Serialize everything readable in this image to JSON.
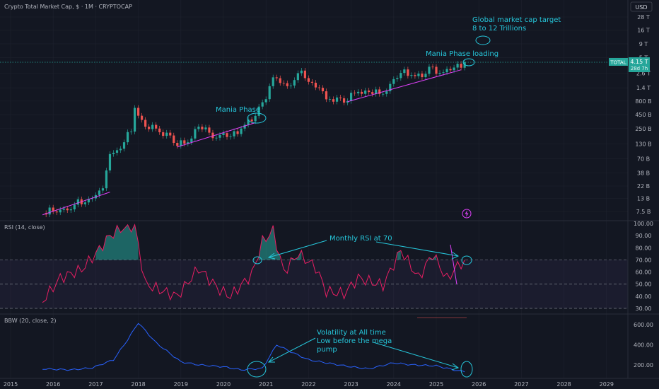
{
  "header": {
    "title": "Crypto Total Market Cap, $ · 1M · CRYPTOCAP",
    "currency_button": "USD"
  },
  "price_badge": {
    "symbol": "TOTAL",
    "value": "4.15 T",
    "countdown": "28d 7h"
  },
  "panes": {
    "rsi_title": "RSI (14, close)",
    "bbw_title": "BBW (20, close, 2)"
  },
  "annotations": {
    "mania_phase": "Mania Phase",
    "mania_loading": "Mania Phase loading",
    "target_line1": "Global market cap target",
    "target_line2": "8 to 12 Trillions",
    "rsi_note": "Monthly RSI at 70",
    "bbw_line1": "Volatility at All time",
    "bbw_line2": "Low before the mega",
    "bbw_line3": "pump"
  },
  "icons": {
    "lightning": "lightning-icon"
  },
  "colors": {
    "up": "#26a69a",
    "down": "#ef5350",
    "rsi": "#e91e63",
    "bbw": "#2962ff",
    "accent": "#26c6da",
    "trend": "#e040fb"
  },
  "chart_data": [
    {
      "type": "candlestick",
      "title": "Crypto Total Market Cap, $ · 1M · CRYPTOCAP",
      "scale": "log",
      "y_ticks": [
        "28 T",
        "16 T",
        "9 T",
        "5 T",
        "2.6 T",
        "1.4 T",
        "800 B",
        "450 B",
        "250 B",
        "130 B",
        "70 B",
        "38 B",
        "22 B",
        "13 B",
        "7.5 B"
      ],
      "x_ticks": [
        "2015",
        "2016",
        "2017",
        "2018",
        "2019",
        "2020",
        "2021",
        "2022",
        "2023",
        "2024",
        "2025",
        "2026",
        "2027",
        "2028",
        "2029"
      ],
      "series": [
        {
          "name": "Total market cap (B USD, monthly close)",
          "x": [
            "2015-10",
            "2016-01",
            "2016-04",
            "2016-07",
            "2016-10",
            "2017-01",
            "2017-03",
            "2017-05",
            "2017-07",
            "2017-09",
            "2017-11",
            "2017-12",
            "2018-01",
            "2018-03",
            "2018-06",
            "2018-09",
            "2018-12",
            "2019-03",
            "2019-06",
            "2019-09",
            "2019-12",
            "2020-03",
            "2020-06",
            "2020-09",
            "2020-12",
            "2021-02",
            "2021-04",
            "2021-07",
            "2021-10",
            "2021-11",
            "2022-01",
            "2022-04",
            "2022-06",
            "2022-09",
            "2022-12",
            "2023-03",
            "2023-06",
            "2023-09",
            "2023-12",
            "2024-03",
            "2024-06",
            "2024-09",
            "2024-12",
            "2025-03",
            "2025-06",
            "2025-09"
          ],
          "values": [
            7,
            7.5,
            8.5,
            10,
            11,
            15,
            20,
            85,
            100,
            140,
            220,
            600,
            430,
            270,
            250,
            210,
            120,
            140,
            270,
            210,
            190,
            180,
            250,
            340,
            760,
            1500,
            2100,
            1500,
            2600,
            2900,
            1800,
            1400,
            860,
            930,
            800,
            1180,
            1170,
            1080,
            1650,
            2630,
            2400,
            2200,
            3400,
            2700,
            3300,
            4150
          ]
        }
      ]
    },
    {
      "type": "line",
      "title": "RSI (14, close)",
      "y_ticks": [
        "100.00",
        "90.00",
        "80.00",
        "70.00",
        "60.00",
        "50.00",
        "40.00",
        "30.00"
      ],
      "ylim": [
        30,
        100
      ],
      "series": [
        {
          "name": "RSI",
          "x": [
            "2015-10",
            "2016-03",
            "2016-09",
            "2017-01",
            "2017-05",
            "2017-09",
            "2017-12",
            "2018-03",
            "2018-09",
            "2018-12",
            "2019-06",
            "2019-12",
            "2020-03",
            "2020-09",
            "2020-12",
            "2021-03",
            "2021-06",
            "2021-10",
            "2022-03",
            "2022-06",
            "2022-11",
            "2023-03",
            "2023-10",
            "2024-03",
            "2024-08",
            "2024-12",
            "2025-04",
            "2025-07",
            "2025-09"
          ],
          "values": [
            36,
            55,
            62,
            75,
            90,
            97,
            98,
            50,
            43,
            40,
            63,
            45,
            40,
            58,
            85,
            94,
            60,
            75,
            64,
            44,
            42,
            55,
            49,
            78,
            55,
            75,
            54,
            65,
            70
          ]
        }
      ]
    },
    {
      "type": "line",
      "title": "BBW (20, close, 2)",
      "y_ticks": [
        "600.00",
        "400.00",
        "200.00"
      ],
      "ylim": [
        100,
        650
      ],
      "series": [
        {
          "name": "BBW",
          "x": [
            "2015-10",
            "2016-06",
            "2016-12",
            "2017-06",
            "2017-10",
            "2018-01",
            "2018-06",
            "2019-01",
            "2019-06",
            "2020-01",
            "2020-06",
            "2020-12",
            "2021-04",
            "2021-08",
            "2022-01",
            "2022-06",
            "2023-01",
            "2023-06",
            "2024-01",
            "2024-06",
            "2025-01",
            "2025-06",
            "2025-09"
          ],
          "values": [
            160,
            150,
            170,
            250,
            450,
            620,
            420,
            230,
            200,
            180,
            150,
            165,
            400,
            330,
            250,
            220,
            180,
            160,
            220,
            200,
            190,
            150,
            130
          ]
        }
      ]
    }
  ]
}
